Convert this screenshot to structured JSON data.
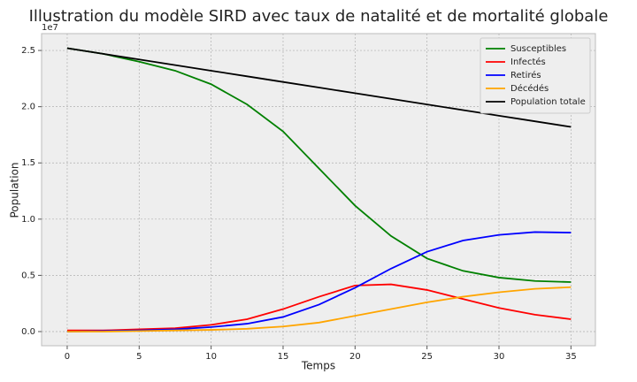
{
  "chart_data": {
    "type": "line",
    "title": "Illustration du modèle SIRD avec taux de natalité et de mortalité globale",
    "x_label": "Temps",
    "y_label": "Population",
    "y_offset_label": "1e7",
    "x": [
      0,
      2.5,
      5,
      7.5,
      10,
      12.5,
      15,
      17.5,
      20,
      22.5,
      25,
      27.5,
      30,
      32.5,
      35
    ],
    "series": [
      {
        "name": "Susceptibles",
        "color": "#008000",
        "values": [
          2.52,
          2.47,
          2.4,
          2.32,
          2.2,
          2.02,
          1.78,
          1.45,
          1.12,
          0.85,
          0.65,
          0.54,
          0.48,
          0.45,
          0.44
        ]
      },
      {
        "name": "Infectés",
        "color": "#ff0000",
        "values": [
          0.01,
          0.01,
          0.02,
          0.03,
          0.06,
          0.11,
          0.2,
          0.31,
          0.41,
          0.42,
          0.37,
          0.29,
          0.21,
          0.15,
          0.11
        ]
      },
      {
        "name": "Retirés",
        "color": "#0000ff",
        "values": [
          0,
          0.005,
          0.01,
          0.02,
          0.04,
          0.07,
          0.13,
          0.24,
          0.39,
          0.56,
          0.71,
          0.81,
          0.86,
          0.885,
          0.88
        ]
      },
      {
        "name": "Décédés",
        "color": "#ffa500",
        "values": [
          0,
          0,
          0.005,
          0.01,
          0.015,
          0.025,
          0.045,
          0.08,
          0.14,
          0.2,
          0.26,
          0.31,
          0.35,
          0.38,
          0.395
        ]
      },
      {
        "name": "Population totale",
        "color": "#000000",
        "values": [
          2.52,
          2.47,
          2.42,
          2.37,
          2.32,
          2.27,
          2.22,
          2.17,
          2.12,
          2.07,
          2.02,
          1.97,
          1.92,
          1.87,
          1.82
        ]
      }
    ],
    "xlim": [
      -1.78,
      36.7
    ],
    "xticks": [
      0,
      5,
      10,
      15,
      20,
      25,
      30,
      35
    ],
    "ylim": [
      -0.126,
      2.65
    ],
    "yticks": [
      {
        "value": 0,
        "label": "0.0"
      },
      0.5,
      {
        "value": 1,
        "label": "1.0"
      },
      1.5,
      {
        "value": 2,
        "label": "2.0"
      },
      2.5
    ],
    "grid": true,
    "legend": "upper right"
  }
}
